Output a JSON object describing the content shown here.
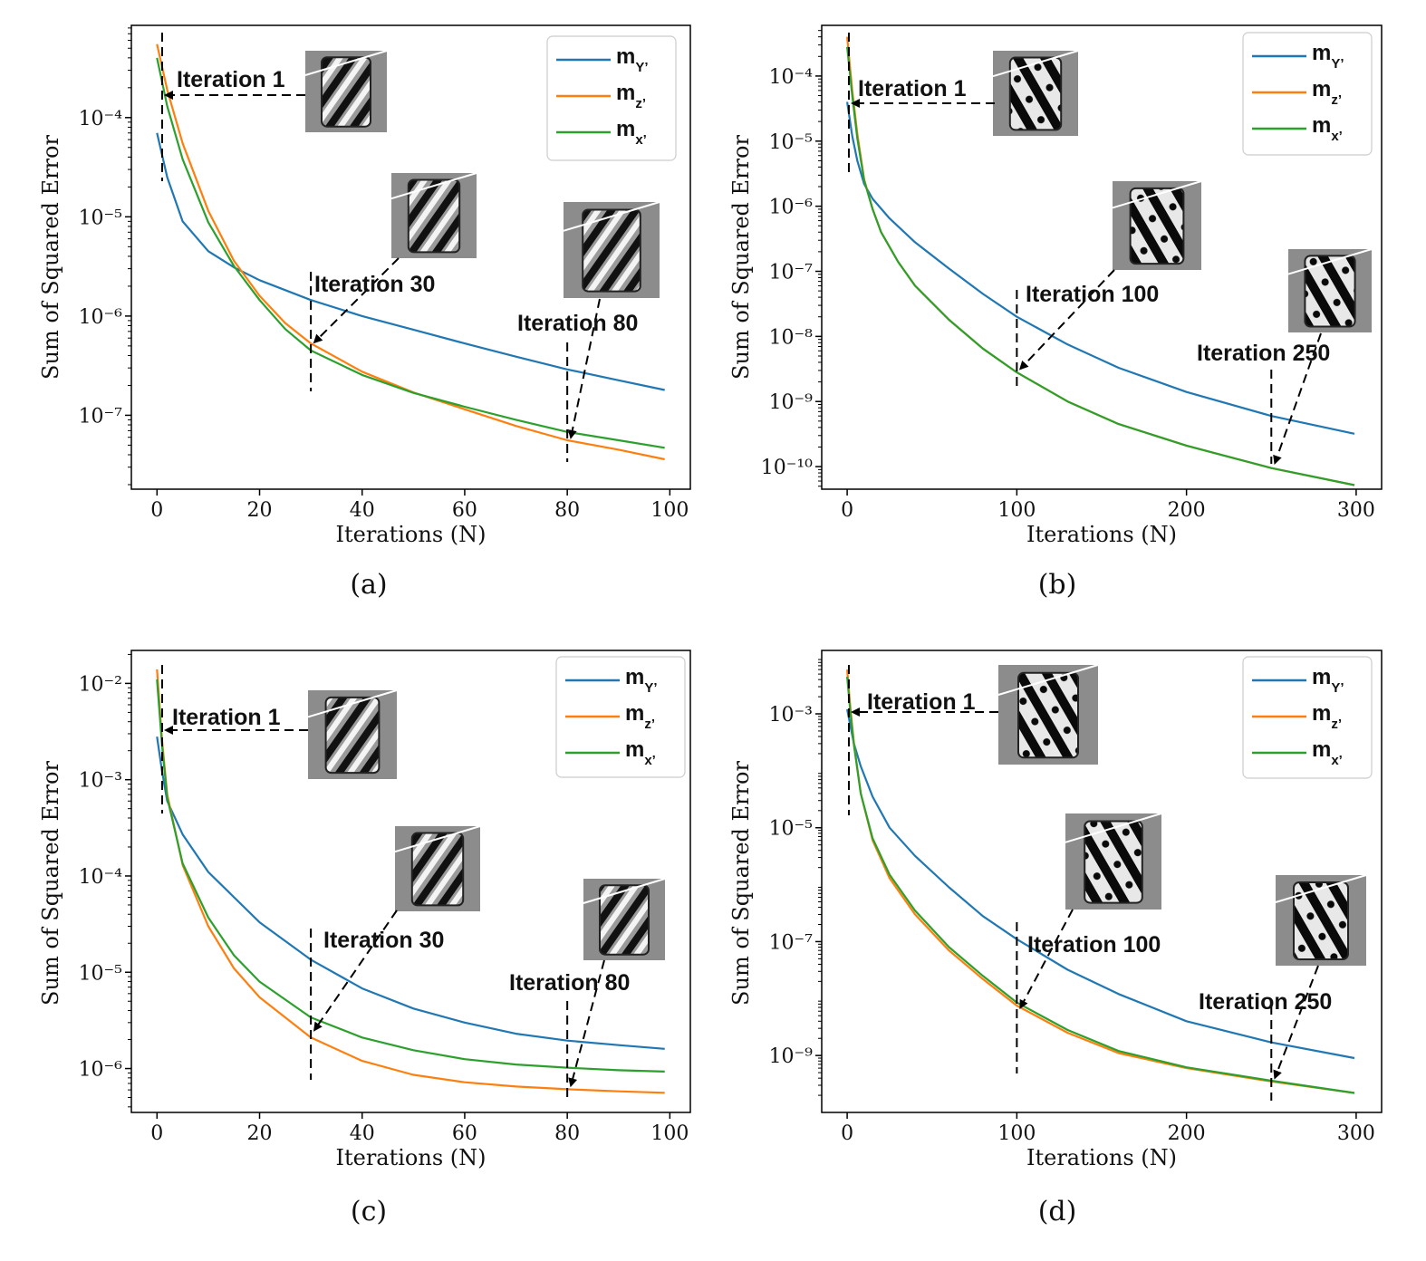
{
  "colors": {
    "Y": "#1f77b4",
    "Z": "#ff7f0e",
    "X": "#2ca02c",
    "frame": "#000000"
  },
  "legend_labels": {
    "m": "m",
    "Y": "Y’",
    "Z": "z’",
    "X": "x’"
  },
  "chart_data": [
    {
      "id": "a",
      "type": "line",
      "caption": "(a)",
      "title": "",
      "xlabel": "Iterations (N)",
      "ylabel": "Sum of Squared Error",
      "yscale": "log",
      "xlim": [
        -5,
        104
      ],
      "ylim": [
        1.8e-08,
        0.00085
      ],
      "xticks": [
        0,
        20,
        40,
        60,
        80,
        100
      ],
      "yticks": [
        1e-07,
        1e-06,
        1e-05,
        0.0001
      ],
      "ytick_labels": [
        "10⁻⁷",
        "10⁻⁶",
        "10⁻⁵",
        "10⁻⁴"
      ],
      "legend_position": "top-right",
      "series": [
        {
          "name": "mY'",
          "key": "Y",
          "x": [
            0,
            2,
            5,
            10,
            15,
            20,
            30,
            40,
            50,
            60,
            70,
            80,
            90,
            99
          ],
          "y": [
            7e-05,
            2.5e-05,
            9e-06,
            4.5e-06,
            3.1e-06,
            2.3e-06,
            1.45e-06,
            1e-06,
            7.3e-07,
            5.3e-07,
            3.9e-07,
            2.9e-07,
            2.25e-07,
            1.8e-07
          ]
        },
        {
          "name": "mz'",
          "key": "Z",
          "x": [
            0,
            2,
            5,
            10,
            15,
            20,
            25,
            30,
            40,
            50,
            60,
            70,
            80,
            90,
            99
          ],
          "y": [
            0.00055,
            0.00019,
            5.5e-05,
            1.15e-05,
            3.6e-06,
            1.6e-06,
            8.5e-07,
            5.3e-07,
            2.75e-07,
            1.7e-07,
            1.15e-07,
            7.8e-08,
            5.6e-08,
            4.5e-08,
            3.6e-08
          ]
        },
        {
          "name": "mx'",
          "key": "X",
          "x": [
            0,
            2,
            5,
            10,
            15,
            20,
            25,
            30,
            40,
            50,
            60,
            70,
            80,
            90,
            99
          ],
          "y": [
            0.0004,
            0.00013,
            3.8e-05,
            8.8e-06,
            3.2e-06,
            1.45e-06,
            7.4e-07,
            4.5e-07,
            2.55e-07,
            1.68e-07,
            1.22e-07,
            9e-08,
            6.8e-08,
            5.6e-08,
            4.7e-08
          ]
        }
      ],
      "annotations": [
        {
          "label": "Iteration 1",
          "iteration": 1,
          "target": 0.00017
        },
        {
          "label": "Iteration 30",
          "iteration": 30,
          "target": 5e-07
        },
        {
          "label": "Iteration 80",
          "iteration": 80,
          "target": 5.5e-08
        }
      ]
    },
    {
      "id": "b",
      "type": "line",
      "caption": "(b)",
      "title": "",
      "xlabel": "Iterations (N)",
      "ylabel": "Sum of Squared Error",
      "yscale": "log",
      "xlim": [
        -15,
        315
      ],
      "ylim": [
        4.5e-11,
        0.0006
      ],
      "xticks": [
        0,
        100,
        200,
        300
      ],
      "yticks": [
        1e-10,
        1e-09,
        1e-08,
        1e-07,
        1e-06,
        1e-05,
        0.0001
      ],
      "ytick_labels": [
        "10⁻¹⁰",
        "10⁻⁹",
        "10⁻⁸",
        "10⁻⁷",
        "10⁻⁶",
        "10⁻⁵",
        "10⁻⁴"
      ],
      "legend_position": "top-right",
      "series": [
        {
          "name": "mY'",
          "key": "Y",
          "x": [
            0,
            3,
            6,
            10,
            15,
            25,
            40,
            60,
            80,
            100,
            130,
            160,
            200,
            250,
            299
          ],
          "y": [
            4e-05,
            1.2e-05,
            5e-06,
            2.2e-06,
            1.3e-06,
            6.5e-07,
            2.8e-07,
            1.1e-07,
            4.5e-08,
            2e-08,
            7.5e-09,
            3.3e-09,
            1.4e-09,
            6e-10,
            3.2e-10
          ]
        },
        {
          "name": "mz'",
          "key": "Z",
          "x": [
            0,
            3,
            6,
            10,
            15,
            20,
            30,
            40,
            60,
            80,
            100,
            130,
            160,
            200,
            250,
            299
          ],
          "y": [
            0.0004,
            6e-05,
            1.3e-05,
            2.6e-06,
            9e-07,
            4e-07,
            1.4e-07,
            6e-08,
            1.8e-08,
            6.5e-09,
            2.8e-09,
            1e-09,
            4.5e-10,
            2.1e-10,
            9.5e-11,
            5.2e-11
          ]
        },
        {
          "name": "mx'",
          "key": "X",
          "x": [
            0,
            3,
            6,
            10,
            15,
            20,
            30,
            40,
            60,
            80,
            100,
            130,
            160,
            200,
            250,
            299
          ],
          "y": [
            0.00028,
            5e-05,
            1.1e-05,
            2.5e-06,
            9e-07,
            4e-07,
            1.4e-07,
            6e-08,
            1.8e-08,
            6.5e-09,
            2.8e-09,
            1e-09,
            4.5e-10,
            2.1e-10,
            9.5e-11,
            5.2e-11
          ]
        }
      ],
      "annotations": [
        {
          "label": "Iteration 1",
          "iteration": 1,
          "target": 4e-05
        },
        {
          "label": "Iteration 100",
          "iteration": 100,
          "target": 2.8e-09
        },
        {
          "label": "Iteration 250",
          "iteration": 250,
          "target": 1e-10
        }
      ]
    },
    {
      "id": "c",
      "type": "line",
      "caption": "(c)",
      "title": "",
      "xlabel": "Iterations (N)",
      "ylabel": "Sum of Squared Error",
      "yscale": "log",
      "xlim": [
        -5,
        104
      ],
      "ylim": [
        3.5e-07,
        0.022
      ],
      "xticks": [
        0,
        20,
        40,
        60,
        80,
        100
      ],
      "yticks": [
        1e-06,
        1e-05,
        0.0001,
        0.001,
        0.01
      ],
      "ytick_labels": [
        "10⁻⁶",
        "10⁻⁵",
        "10⁻⁴",
        "10⁻³",
        "10⁻²"
      ],
      "legend_position": "top-right",
      "series": [
        {
          "name": "mY'",
          "key": "Y",
          "x": [
            0,
            1,
            2,
            5,
            10,
            20,
            30,
            40,
            50,
            60,
            70,
            80,
            90,
            99
          ],
          "y": [
            0.0028,
            0.0012,
            0.0006,
            0.00027,
            0.00011,
            3.3e-05,
            1.35e-05,
            6.8e-06,
            4.2e-06,
            3e-06,
            2.3e-06,
            1.95e-06,
            1.75e-06,
            1.6e-06
          ]
        },
        {
          "name": "mz'",
          "key": "Z",
          "x": [
            0,
            1,
            2,
            5,
            10,
            15,
            20,
            30,
            40,
            50,
            60,
            70,
            80,
            90,
            99
          ],
          "y": [
            0.014,
            0.0025,
            0.0007,
            0.00013,
            3e-05,
            1.1e-05,
            5.5e-06,
            2.1e-06,
            1.2e-06,
            8.6e-07,
            7.2e-07,
            6.5e-07,
            6.1e-07,
            5.8e-07,
            5.6e-07
          ]
        },
        {
          "name": "mx'",
          "key": "X",
          "x": [
            0,
            1,
            2,
            5,
            10,
            15,
            20,
            30,
            40,
            50,
            60,
            70,
            80,
            90,
            99
          ],
          "y": [
            0.011,
            0.0022,
            0.00065,
            0.000135,
            3.7e-05,
            1.5e-05,
            8e-06,
            3.4e-06,
            2.1e-06,
            1.55e-06,
            1.25e-06,
            1.1e-06,
            1.02e-06,
            9.6e-07,
            9.3e-07
          ]
        }
      ],
      "annotations": [
        {
          "label": "Iteration 1",
          "iteration": 1,
          "target": 0.0035
        },
        {
          "label": "Iteration 30",
          "iteration": 30,
          "target": 2.3e-06
        },
        {
          "label": "Iteration 80",
          "iteration": 80,
          "target": 6.1e-07
        }
      ]
    },
    {
      "id": "d",
      "type": "line",
      "caption": "(d)",
      "title": "",
      "xlabel": "Iterations (N)",
      "ylabel": "Sum of Squared Error",
      "yscale": "log",
      "xlim": [
        -15,
        315
      ],
      "ylim": [
        1e-10,
        0.013
      ],
      "xticks": [
        0,
        100,
        200,
        300
      ],
      "yticks": [
        1e-09,
        1e-07,
        1e-05,
        0.001
      ],
      "ytick_labels": [
        "10⁻⁹",
        "10⁻⁷",
        "10⁻⁵",
        "10⁻³"
      ],
      "legend_position": "top-right",
      "series": [
        {
          "name": "mY'",
          "key": "Y",
          "x": [
            0,
            2,
            4,
            8,
            15,
            25,
            40,
            60,
            80,
            100,
            130,
            160,
            200,
            250,
            299
          ],
          "y": [
            0.0012,
            0.0006,
            0.0003,
            0.00012,
            3.5e-05,
            1e-05,
            3.2e-06,
            9e-07,
            2.8e-07,
            1.1e-07,
            3.2e-08,
            1.2e-08,
            4e-09,
            1.7e-09,
            9e-10
          ]
        },
        {
          "name": "mz'",
          "key": "Z",
          "x": [
            0,
            2,
            4,
            8,
            15,
            25,
            40,
            60,
            80,
            100,
            130,
            160,
            200,
            250,
            299
          ],
          "y": [
            0.006,
            0.0012,
            0.0003,
            4e-05,
            6e-06,
            1.3e-06,
            3e-07,
            7e-08,
            2.2e-08,
            7.5e-09,
            2.5e-09,
            1.1e-09,
            6e-10,
            3.5e-10,
            2.2e-10
          ]
        },
        {
          "name": "mx'",
          "key": "X",
          "x": [
            0,
            2,
            4,
            8,
            15,
            25,
            40,
            60,
            80,
            100,
            130,
            160,
            200,
            250,
            299
          ],
          "y": [
            0.0045,
            0.001,
            0.00028,
            4e-05,
            6.5e-06,
            1.5e-06,
            3.5e-07,
            8e-08,
            2.5e-08,
            8.5e-09,
            2.8e-09,
            1.2e-09,
            6.2e-10,
            3.6e-10,
            2.2e-10
          ]
        }
      ],
      "annotations": [
        {
          "label": "Iteration 1",
          "iteration": 1,
          "target": 0.001
        },
        {
          "label": "Iteration 100",
          "iteration": 100,
          "target": 6e-09
        },
        {
          "label": "Iteration 250",
          "iteration": 250,
          "target": 3.5e-10
        }
      ]
    }
  ]
}
